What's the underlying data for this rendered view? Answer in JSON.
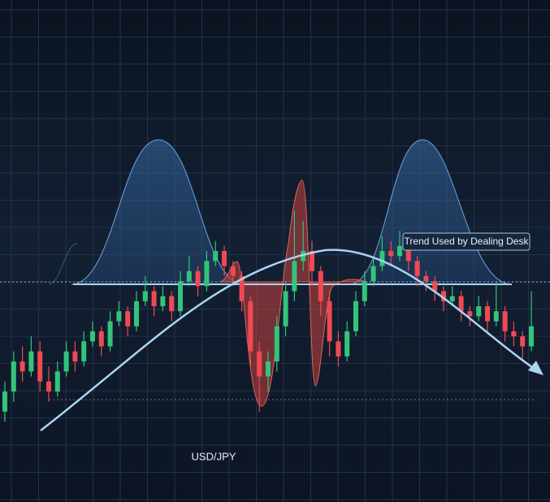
{
  "chart_data": {
    "type": "candlestick",
    "title": "USD/JPY",
    "annotation": "Trend Used by Dealing Desk",
    "up_color": "#33c47a",
    "down_color": "#ef4a52",
    "ylim": [
      0,
      100
    ],
    "open": [
      18,
      22,
      28,
      26,
      30,
      24,
      22,
      26,
      30,
      28,
      32,
      34,
      31,
      36,
      38,
      35,
      40,
      42,
      39,
      41,
      38,
      44,
      46,
      43,
      48,
      50,
      47,
      45,
      40,
      30,
      25,
      28,
      35,
      42,
      48,
      50,
      46,
      40,
      32,
      29,
      34,
      40,
      44,
      47,
      50,
      49,
      51,
      48,
      45,
      44,
      42,
      40,
      41,
      38,
      37,
      39,
      36,
      38,
      34,
      33,
      31
    ],
    "high": [
      24,
      30,
      31,
      33,
      32,
      27,
      28,
      32,
      32,
      34,
      36,
      35,
      38,
      40,
      39,
      42,
      45,
      43,
      43,
      42,
      46,
      49,
      47,
      50,
      52,
      51,
      48,
      46,
      41,
      32,
      30,
      37,
      44,
      58,
      56,
      52,
      47,
      42,
      34,
      36,
      42,
      46,
      49,
      53,
      52,
      54,
      52,
      49,
      46,
      45,
      43,
      43,
      42,
      39,
      41,
      40,
      44,
      39,
      36,
      34,
      42
    ],
    "low": [
      16,
      20,
      24,
      25,
      22,
      20,
      21,
      25,
      26,
      27,
      31,
      29,
      30,
      35,
      33,
      34,
      39,
      37,
      38,
      36,
      37,
      43,
      41,
      42,
      47,
      45,
      43,
      38,
      27,
      18,
      22,
      26,
      33,
      40,
      46,
      43,
      37,
      29,
      27,
      28,
      33,
      39,
      43,
      46,
      47,
      48,
      46,
      43,
      42,
      40,
      38,
      39,
      36,
      35,
      36,
      34,
      35,
      32,
      31,
      28,
      30
    ],
    "close": [
      22,
      28,
      26,
      30,
      24,
      22,
      26,
      30,
      28,
      32,
      34,
      31,
      36,
      38,
      35,
      40,
      42,
      39,
      41,
      38,
      44,
      46,
      43,
      48,
      50,
      47,
      45,
      40,
      30,
      25,
      28,
      35,
      42,
      48,
      50,
      46,
      40,
      32,
      29,
      34,
      40,
      44,
      47,
      50,
      49,
      51,
      48,
      45,
      44,
      42,
      40,
      41,
      38,
      37,
      39,
      36,
      38,
      34,
      33,
      31,
      35
    ]
  }
}
